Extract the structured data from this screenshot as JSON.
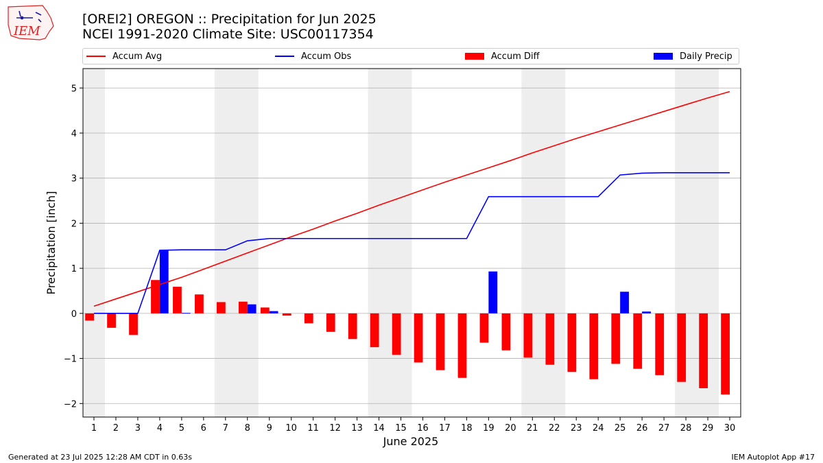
{
  "header": {
    "logo_text": "IEM",
    "title_line1": "[OREI2] OREGON :: Precipitation for Jun 2025",
    "title_line2": "NCEI 1991-2020 Climate Site: USC00117354"
  },
  "footer": {
    "left": "Generated at 23 Jul 2025 12:28 AM CDT in 0.63s",
    "right": "IEM Autoplot App #17"
  },
  "colors": {
    "accum_avg": "#ff0000",
    "accum_obs": "#0000ff",
    "accum_diff": "#ff0000",
    "daily_precip": "#0000ff",
    "weekend_shade": "#eeeeee",
    "grid": "#b0b0b0"
  },
  "chart_data": {
    "type": "bar",
    "xlabel": "June 2025",
    "ylabel": "Precipitation [inch]",
    "x": [
      1,
      2,
      3,
      4,
      5,
      6,
      7,
      8,
      9,
      10,
      11,
      12,
      13,
      14,
      15,
      16,
      17,
      18,
      19,
      20,
      21,
      22,
      23,
      24,
      25,
      26,
      27,
      28,
      29,
      30
    ],
    "xlim": [
      0.5,
      30.5
    ],
    "ylim": [
      -2.3,
      5.43
    ],
    "yticks": [
      -2,
      -1,
      0,
      1,
      2,
      3,
      4,
      5
    ],
    "ytick_labels": [
      "−2",
      "−1",
      "0",
      "1",
      "2",
      "3",
      "4",
      "5"
    ],
    "grid": "horizontal",
    "legend_position": "top",
    "shaded_days": [
      [
        0.5,
        1.5
      ],
      [
        6.5,
        8.5
      ],
      [
        13.5,
        15.5
      ],
      [
        20.5,
        22.5
      ],
      [
        27.5,
        29.5
      ]
    ],
    "series": [
      {
        "name": "Accum Avg",
        "kind": "line",
        "values": [
          0.16,
          0.32,
          0.48,
          0.64,
          0.8,
          0.98,
          1.16,
          1.34,
          1.52,
          1.7,
          1.87,
          2.05,
          2.22,
          2.4,
          2.57,
          2.74,
          2.91,
          3.07,
          3.23,
          3.39,
          3.56,
          3.72,
          3.88,
          4.03,
          4.18,
          4.33,
          4.48,
          4.63,
          4.78,
          4.92
        ]
      },
      {
        "name": "Accum Obs",
        "kind": "line",
        "values": [
          0.0,
          0.0,
          0.0,
          1.4,
          1.41,
          1.41,
          1.41,
          1.61,
          1.66,
          1.66,
          1.66,
          1.66,
          1.66,
          1.66,
          1.66,
          1.66,
          1.66,
          1.66,
          2.59,
          2.59,
          2.59,
          2.59,
          2.59,
          2.59,
          3.07,
          3.11,
          3.12,
          3.12,
          3.12,
          3.12
        ]
      },
      {
        "name": "Accum Diff",
        "kind": "bar",
        "values": [
          -0.16,
          -0.32,
          -0.48,
          0.74,
          0.59,
          0.42,
          0.25,
          0.26,
          0.13,
          -0.05,
          -0.22,
          -0.41,
          -0.57,
          -0.75,
          -0.92,
          -1.09,
          -1.26,
          -1.43,
          -0.65,
          -0.82,
          -0.98,
          -1.14,
          -1.3,
          -1.46,
          -1.12,
          -1.23,
          -1.37,
          -1.52,
          -1.66,
          -1.8
        ]
      },
      {
        "name": "Daily Precip",
        "kind": "bar",
        "values": [
          0.0,
          0.0,
          0.0,
          1.4,
          0.01,
          0.0,
          0.0,
          0.2,
          0.05,
          0.0,
          0.0,
          0.0,
          0.0,
          0.0,
          0.0,
          0.0,
          0.0,
          0.0,
          0.93,
          0.0,
          0.0,
          0.0,
          0.0,
          0.0,
          0.48,
          0.04,
          0.0,
          0.0,
          0.0,
          0.0
        ]
      }
    ]
  }
}
